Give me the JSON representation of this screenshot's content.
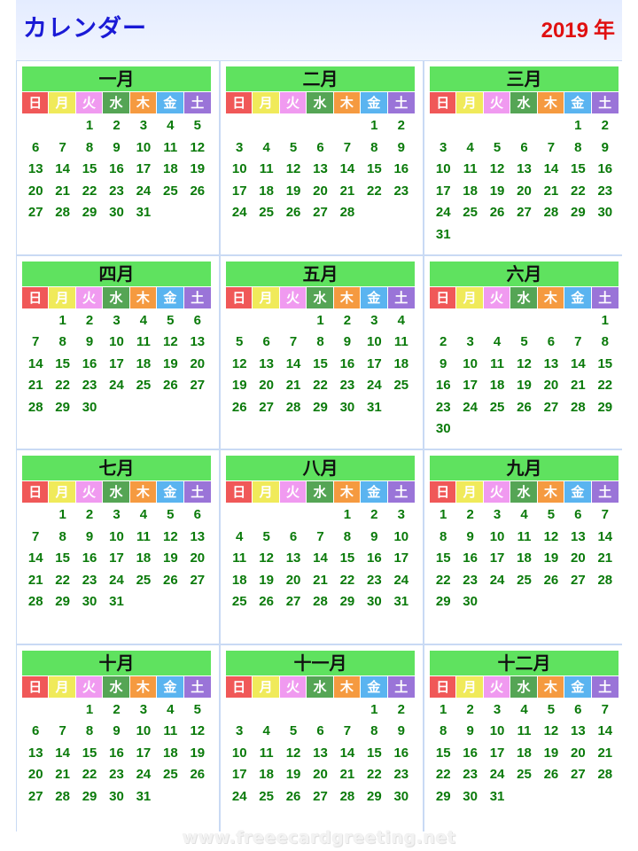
{
  "header": {
    "title": "カレンダー",
    "year": "2019",
    "year_unit": "年"
  },
  "weekday_colors": [
    "#f05858",
    "#f0ea5a",
    "#f09af0",
    "#55a555",
    "#f59a40",
    "#5ab4f0",
    "#9a74d8"
  ],
  "watermark": "www.freeecardgreeting.net",
  "months": [
    {
      "name": "一月",
      "weekdays": [
        "日",
        "月",
        "火",
        "水",
        "木",
        "金",
        "土"
      ],
      "start": 2,
      "days": 31
    },
    {
      "name": "二月",
      "weekdays": [
        "日",
        "月",
        "火",
        "水",
        "木",
        "金",
        "土"
      ],
      "start": 5,
      "days": 28
    },
    {
      "name": "三月",
      "weekdays": [
        "日",
        "月",
        "火",
        "水",
        "木",
        "金",
        "土"
      ],
      "start": 5,
      "days": 31
    },
    {
      "name": "四月",
      "weekdays": [
        "日",
        "月",
        "火",
        "水",
        "木",
        "金",
        "土"
      ],
      "start": 1,
      "days": 30
    },
    {
      "name": "五月",
      "weekdays": [
        "日",
        "月",
        "火",
        "水",
        "木",
        "金",
        "土"
      ],
      "start": 3,
      "days": 31
    },
    {
      "name": "六月",
      "weekdays": [
        "日",
        "月",
        "火",
        "水",
        "木",
        "金",
        "土"
      ],
      "start": 6,
      "days": 30
    },
    {
      "name": "七月",
      "weekdays": [
        "日",
        "月",
        "火",
        "水",
        "木",
        "金",
        "土"
      ],
      "start": 1,
      "days": 31
    },
    {
      "name": "八月",
      "weekdays": [
        "日",
        "月",
        "火",
        "水",
        "木",
        "金",
        "土"
      ],
      "start": 4,
      "days": 31
    },
    {
      "name": "九月",
      "weekdays": [
        "日",
        "月",
        "火",
        "水",
        "木",
        "金",
        "土"
      ],
      "start": 0,
      "days": 30
    },
    {
      "name": "十月",
      "weekdays": [
        "日",
        "月",
        "火",
        "水",
        "木",
        "金",
        "土"
      ],
      "start": 2,
      "days": 31
    },
    {
      "name": "十一月",
      "weekdays": [
        "日",
        "月",
        "火",
        "水",
        "木",
        "金",
        "土"
      ],
      "start": 5,
      "days": 30
    },
    {
      "name": "十二月",
      "weekdays": [
        "日",
        "月",
        "火",
        "水",
        "木",
        "金",
        "土"
      ],
      "start": 0,
      "days": 31
    }
  ]
}
